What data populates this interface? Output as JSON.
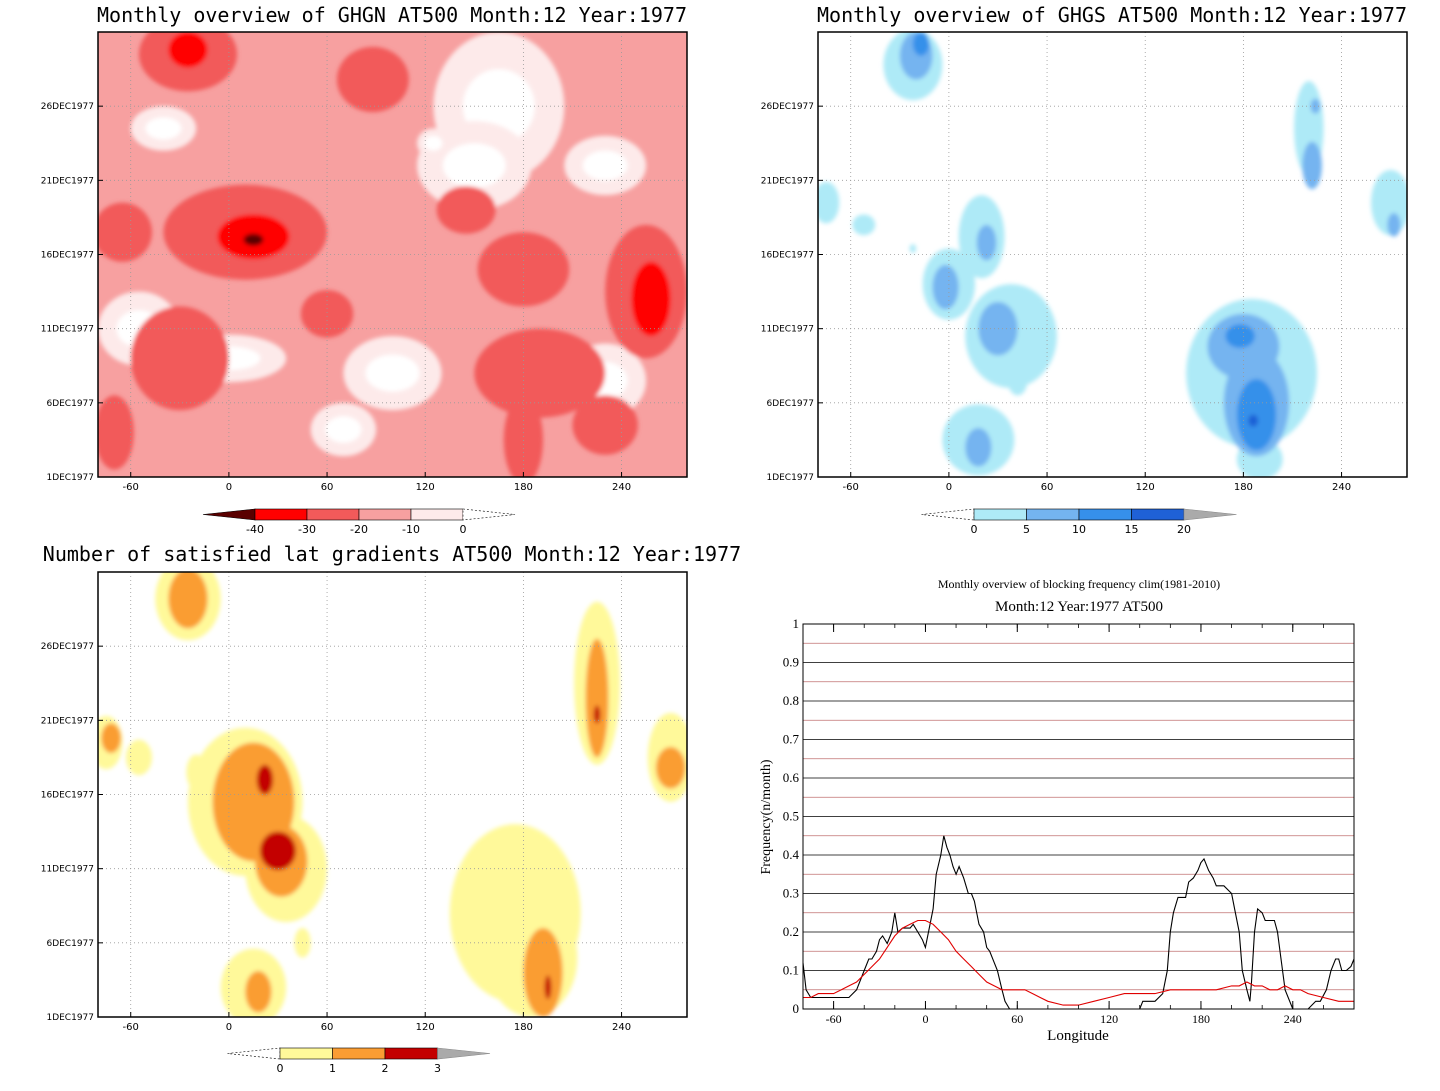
{
  "colors": {
    "ghgn": [
      "#ffffff",
      "#fdeaea",
      "#f7a0a0",
      "#f25a5a",
      "#ff0000",
      "#b80000",
      "#5a0000"
    ],
    "ghgs": [
      "#ffffff",
      "#aeeaf7",
      "#74b4f0",
      "#3690ea",
      "#1f61d6"
    ],
    "gradients": [
      "#ffffff",
      "#fff99a",
      "#fa9d33",
      "#c30000"
    ],
    "freq_black": "#000000",
    "freq_red": "#e00000",
    "freq_grid_red": "#c07070"
  },
  "chart_data": [
    {
      "id": "ghgn",
      "type": "heatmap",
      "title": "Monthly overview of GHGN AT500 Month:12 Year:1977",
      "x_tick_labels": [
        "-60",
        "0",
        "60",
        "120",
        "180",
        "240"
      ],
      "x_ticks": [
        -60,
        0,
        60,
        120,
        180,
        240
      ],
      "xlim": [
        -80,
        280
      ],
      "y_tick_labels": [
        "1DEC1977",
        "6DEC1977",
        "11DEC1977",
        "16DEC1977",
        "21DEC1977",
        "26DEC1977"
      ],
      "y_ticks": [
        1,
        6,
        11,
        16,
        21,
        26
      ],
      "ylim": [
        1,
        31
      ],
      "colorbar": {
        "labels": [
          "-40",
          "-30",
          "-20",
          "-10",
          "0"
        ],
        "levels": [
          -40,
          -30,
          -20,
          -10,
          0
        ]
      },
      "blobs": [
        {
          "x": -25,
          "y": 29.5,
          "rx": 30,
          "ry": 2.5,
          "level": 3
        },
        {
          "x": -25,
          "y": 29.8,
          "rx": 12,
          "ry": 1.2,
          "level": 4
        },
        {
          "x": 88,
          "y": 27.8,
          "rx": 22,
          "ry": 2.2,
          "level": 3
        },
        {
          "x": 10,
          "y": 17.5,
          "rx": 50,
          "ry": 3.2,
          "level": 3
        },
        {
          "x": 15,
          "y": 17.2,
          "rx": 22,
          "ry": 1.5,
          "level": 4
        },
        {
          "x": 15,
          "y": 17,
          "rx": 6,
          "ry": 0.4,
          "level": 6
        },
        {
          "x": -65,
          "y": 17.5,
          "rx": 18,
          "ry": 2,
          "level": 3
        },
        {
          "x": 255,
          "y": 13.5,
          "rx": 25,
          "ry": 4.5,
          "level": 3
        },
        {
          "x": 258,
          "y": 13,
          "rx": 12,
          "ry": 2.5,
          "level": 4
        },
        {
          "x": 180,
          "y": 3.5,
          "rx": 12,
          "ry": 3,
          "level": 3
        },
        {
          "x": 180,
          "y": 15,
          "rx": 28,
          "ry": 2.5,
          "level": 3
        },
        {
          "x": 190,
          "y": 8,
          "rx": 40,
          "ry": 3,
          "level": 3
        },
        {
          "x": 60,
          "y": 12,
          "rx": 16,
          "ry": 1.6,
          "level": 3
        },
        {
          "x": 145,
          "y": 19,
          "rx": 18,
          "ry": 1.6,
          "level": 3
        },
        {
          "x": 230,
          "y": 4.5,
          "rx": 20,
          "ry": 2,
          "level": 3
        },
        {
          "x": -30,
          "y": 9,
          "rx": 30,
          "ry": 3.5,
          "level": 3
        },
        {
          "x": -70,
          "y": 4,
          "rx": 12,
          "ry": 2.5,
          "level": 3
        }
      ],
      "light_blobs": [
        {
          "x": 165,
          "y": 26,
          "rx": 40,
          "ry": 5
        },
        {
          "x": 150,
          "y": 22,
          "rx": 35,
          "ry": 3
        },
        {
          "x": -40,
          "y": 24.5,
          "rx": 20,
          "ry": 1.5
        },
        {
          "x": -55,
          "y": 11,
          "rx": 25,
          "ry": 2.5
        },
        {
          "x": 0,
          "y": 9,
          "rx": 35,
          "ry": 1.6
        },
        {
          "x": 100,
          "y": 8,
          "rx": 30,
          "ry": 2.5
        },
        {
          "x": 230,
          "y": 7.5,
          "rx": 25,
          "ry": 2.5
        },
        {
          "x": 70,
          "y": 4.2,
          "rx": 20,
          "ry": 1.8
        },
        {
          "x": 125,
          "y": 23.5,
          "rx": 10,
          "ry": 1
        },
        {
          "x": 230,
          "y": 22,
          "rx": 25,
          "ry": 2
        }
      ]
    },
    {
      "id": "ghgs",
      "type": "heatmap",
      "title": "Monthly overview of GHGS AT500 Month:12 Year:1977",
      "x_tick_labels": [
        "-60",
        "0",
        "60",
        "120",
        "180",
        "240"
      ],
      "x_ticks": [
        -60,
        0,
        60,
        120,
        180,
        240
      ],
      "xlim": [
        -80,
        280
      ],
      "y_tick_labels": [
        "1DEC1977",
        "6DEC1977",
        "11DEC1977",
        "16DEC1977",
        "21DEC1977",
        "26DEC1977"
      ],
      "y_ticks": [
        1,
        6,
        11,
        16,
        21,
        26
      ],
      "ylim": [
        1,
        31
      ],
      "colorbar": {
        "labels": [
          "0",
          "5",
          "10",
          "15",
          "20"
        ],
        "levels": [
          0,
          5,
          10,
          15,
          20
        ]
      },
      "blobs": [
        {
          "x": -22,
          "y": 28.8,
          "rx": 18,
          "ry": 2.4,
          "level": 1
        },
        {
          "x": -20,
          "y": 29.4,
          "rx": 10,
          "ry": 1.6,
          "level": 2
        },
        {
          "x": -17,
          "y": 30.2,
          "rx": 5,
          "ry": 0.8,
          "level": 3
        },
        {
          "x": 220,
          "y": 24.5,
          "rx": 9,
          "ry": 3.2,
          "level": 1
        },
        {
          "x": 222,
          "y": 22,
          "rx": 6,
          "ry": 1.6,
          "level": 2
        },
        {
          "x": 224,
          "y": 26,
          "rx": 3,
          "ry": 0.5,
          "level": 2
        },
        {
          "x": 270,
          "y": 19.5,
          "rx": 12,
          "ry": 2.2,
          "level": 1
        },
        {
          "x": 272,
          "y": 18,
          "rx": 4,
          "ry": 0.8,
          "level": 2
        },
        {
          "x": -75,
          "y": 19.5,
          "rx": 8,
          "ry": 1.4,
          "level": 1
        },
        {
          "x": -52,
          "y": 18,
          "rx": 7,
          "ry": 0.7,
          "level": 1
        },
        {
          "x": -22,
          "y": 16.4,
          "rx": 2,
          "ry": 0.3,
          "level": 1
        },
        {
          "x": 20,
          "y": 17.2,
          "rx": 14,
          "ry": 2.8,
          "level": 1
        },
        {
          "x": 23,
          "y": 16.8,
          "rx": 6,
          "ry": 1.2,
          "level": 2
        },
        {
          "x": 0,
          "y": 14,
          "rx": 16,
          "ry": 2.4,
          "level": 1
        },
        {
          "x": -2,
          "y": 13.8,
          "rx": 8,
          "ry": 1.5,
          "level": 2
        },
        {
          "x": 38,
          "y": 10.5,
          "rx": 28,
          "ry": 3.5,
          "level": 1
        },
        {
          "x": 30,
          "y": 11,
          "rx": 12,
          "ry": 1.8,
          "level": 2
        },
        {
          "x": 42,
          "y": 7.5,
          "rx": 6,
          "ry": 1,
          "level": 1
        },
        {
          "x": 18,
          "y": 3.5,
          "rx": 22,
          "ry": 2.4,
          "level": 1
        },
        {
          "x": 18,
          "y": 3,
          "rx": 8,
          "ry": 1.3,
          "level": 2
        },
        {
          "x": 185,
          "y": 8,
          "rx": 40,
          "ry": 5,
          "level": 1
        },
        {
          "x": 180,
          "y": 9.8,
          "rx": 22,
          "ry": 2.2,
          "level": 2
        },
        {
          "x": 188,
          "y": 6,
          "rx": 20,
          "ry": 3.6,
          "level": 2
        },
        {
          "x": 188,
          "y": 5.2,
          "rx": 12,
          "ry": 2.4,
          "level": 3
        },
        {
          "x": 178,
          "y": 10.5,
          "rx": 9,
          "ry": 0.8,
          "level": 3
        },
        {
          "x": 190,
          "y": 2.2,
          "rx": 14,
          "ry": 1.4,
          "level": 1
        },
        {
          "x": 186,
          "y": 4.8,
          "rx": 3,
          "ry": 0.4,
          "level": 4
        }
      ]
    },
    {
      "id": "gradients",
      "type": "heatmap",
      "title": "Number of satisfied lat gradients AT500 Month:12 Year:1977",
      "x_tick_labels": [
        "-60",
        "0",
        "60",
        "120",
        "180",
        "240"
      ],
      "x_ticks": [
        -60,
        0,
        60,
        120,
        180,
        240
      ],
      "xlim": [
        -80,
        280
      ],
      "y_tick_labels": [
        "1DEC1977",
        "6DEC1977",
        "11DEC1977",
        "16DEC1977",
        "21DEC1977",
        "26DEC1977"
      ],
      "y_ticks": [
        1,
        6,
        11,
        16,
        21,
        26
      ],
      "ylim": [
        1,
        31
      ],
      "colorbar": {
        "labels": [
          "0",
          "1",
          "2",
          "3"
        ],
        "levels": [
          0,
          1,
          2,
          3
        ]
      },
      "blobs": [
        {
          "x": -25,
          "y": 29.2,
          "rx": 20,
          "ry": 2.8,
          "level": 1
        },
        {
          "x": -25,
          "y": 29.2,
          "rx": 12,
          "ry": 2,
          "level": 2
        },
        {
          "x": 225,
          "y": 23.5,
          "rx": 14,
          "ry": 5.5,
          "level": 1
        },
        {
          "x": 225,
          "y": 22.5,
          "rx": 7,
          "ry": 4,
          "level": 2
        },
        {
          "x": 225,
          "y": 21.4,
          "rx": 2,
          "ry": 0.6,
          "level": 3
        },
        {
          "x": 270,
          "y": 18.5,
          "rx": 14,
          "ry": 3,
          "level": 1
        },
        {
          "x": 270,
          "y": 17.8,
          "rx": 9,
          "ry": 1.4,
          "level": 2
        },
        {
          "x": -75,
          "y": 19.5,
          "rx": 10,
          "ry": 1.8,
          "level": 1
        },
        {
          "x": -72,
          "y": 19.8,
          "rx": 6,
          "ry": 1,
          "level": 2
        },
        {
          "x": -55,
          "y": 18.5,
          "rx": 8,
          "ry": 1.2,
          "level": 1
        },
        {
          "x": -20,
          "y": 17.5,
          "rx": 6,
          "ry": 1.2,
          "level": 1
        },
        {
          "x": 10,
          "y": 15.5,
          "rx": 35,
          "ry": 5,
          "level": 1
        },
        {
          "x": 15,
          "y": 15.5,
          "rx": 25,
          "ry": 4,
          "level": 2
        },
        {
          "x": 22,
          "y": 17,
          "rx": 5,
          "ry": 1,
          "level": 3
        },
        {
          "x": 35,
          "y": 11,
          "rx": 25,
          "ry": 3.6,
          "level": 1
        },
        {
          "x": 32,
          "y": 11.5,
          "rx": 16,
          "ry": 2.4,
          "level": 2
        },
        {
          "x": 30,
          "y": 12.2,
          "rx": 11,
          "ry": 1.3,
          "level": 3
        },
        {
          "x": 45,
          "y": 6,
          "rx": 5,
          "ry": 1,
          "level": 1
        },
        {
          "x": 15,
          "y": 3,
          "rx": 20,
          "ry": 2.6,
          "level": 1
        },
        {
          "x": 18,
          "y": 2.7,
          "rx": 8,
          "ry": 1.4,
          "level": 2
        },
        {
          "x": 175,
          "y": 8,
          "rx": 40,
          "ry": 6,
          "level": 1
        },
        {
          "x": 185,
          "y": 5,
          "rx": 28,
          "ry": 4,
          "level": 1
        },
        {
          "x": 192,
          "y": 4,
          "rx": 12,
          "ry": 3,
          "level": 2
        },
        {
          "x": 195,
          "y": 3,
          "rx": 2,
          "ry": 0.8,
          "level": 3
        }
      ]
    },
    {
      "id": "frequency",
      "type": "line",
      "title": "Monthly overview of blocking frequency clim(1981-2010)",
      "subtitle": "Month:12 Year:1977  AT500",
      "xlabel": "Longitude",
      "ylabel": "Frequency(n/month)",
      "xlim": [
        -80,
        280
      ],
      "ylim": [
        0,
        1
      ],
      "x_ticks": [
        -60,
        0,
        60,
        120,
        180,
        240
      ],
      "x_tick_labels": [
        "-60",
        "0",
        "60",
        "120",
        "180",
        "240"
      ],
      "y_ticks": [
        0,
        0.1,
        0.2,
        0.3,
        0.4,
        0.5,
        0.6,
        0.7,
        0.8,
        0.9,
        1
      ],
      "y_tick_labels": [
        "0",
        "0.1",
        "0.2",
        "0.3",
        "0.4",
        "0.5",
        "0.6",
        "0.7",
        "0.8",
        "0.9",
        "1"
      ],
      "series": [
        {
          "color": "#000000",
          "x": [
            -80,
            -78,
            -75,
            -70,
            -65,
            -60,
            -55,
            -50,
            -45,
            -40,
            -37,
            -35,
            -32,
            -30,
            -28,
            -25,
            -22,
            -20,
            -18,
            -15,
            -12,
            -10,
            -8,
            -5,
            -2,
            0,
            2,
            5,
            7,
            10,
            12,
            14,
            16,
            18,
            20,
            22,
            25,
            28,
            30,
            32,
            35,
            38,
            40,
            42,
            45,
            47,
            50,
            52,
            55,
            60,
            80,
            100,
            120,
            140,
            142,
            145,
            150,
            155,
            158,
            160,
            162,
            165,
            168,
            170,
            172,
            175,
            178,
            180,
            182,
            185,
            188,
            190,
            195,
            200,
            202,
            205,
            207,
            210,
            212,
            213,
            215,
            217,
            220,
            222,
            225,
            228,
            230,
            232,
            235,
            240,
            250,
            255,
            258,
            262,
            265,
            268,
            270,
            272,
            275,
            278,
            280
          ],
          "y": [
            0.12,
            0.05,
            0.03,
            0.03,
            0.03,
            0.03,
            0.03,
            0.03,
            0.05,
            0.1,
            0.13,
            0.13,
            0.15,
            0.18,
            0.19,
            0.17,
            0.2,
            0.25,
            0.2,
            0.21,
            0.21,
            0.21,
            0.22,
            0.2,
            0.18,
            0.16,
            0.2,
            0.26,
            0.35,
            0.4,
            0.45,
            0.42,
            0.4,
            0.37,
            0.35,
            0.37,
            0.34,
            0.3,
            0.3,
            0.28,
            0.22,
            0.2,
            0.16,
            0.15,
            0.12,
            0.1,
            0.05,
            0.02,
            0,
            0,
            0,
            0,
            0,
            0,
            0.02,
            0.02,
            0.02,
            0.04,
            0.1,
            0.2,
            0.25,
            0.29,
            0.29,
            0.29,
            0.33,
            0.34,
            0.36,
            0.38,
            0.39,
            0.36,
            0.34,
            0.32,
            0.32,
            0.3,
            0.26,
            0.2,
            0.1,
            0.05,
            0.02,
            0.07,
            0.2,
            0.26,
            0.25,
            0.23,
            0.23,
            0.23,
            0.2,
            0.14,
            0.05,
            0,
            0,
            0.02,
            0.02,
            0.05,
            0.1,
            0.13,
            0.13,
            0.1,
            0.1,
            0.11,
            0.13
          ]
        },
        {
          "color": "#e00000",
          "x": [
            -80,
            -75,
            -70,
            -65,
            -60,
            -55,
            -50,
            -45,
            -40,
            -35,
            -30,
            -25,
            -20,
            -15,
            -10,
            -5,
            0,
            5,
            10,
            15,
            20,
            25,
            30,
            35,
            40,
            45,
            50,
            55,
            60,
            65,
            70,
            75,
            80,
            90,
            100,
            110,
            120,
            130,
            140,
            150,
            160,
            170,
            180,
            190,
            200,
            205,
            210,
            215,
            220,
            225,
            230,
            235,
            240,
            245,
            250,
            260,
            270,
            280
          ],
          "y": [
            0.03,
            0.03,
            0.04,
            0.04,
            0.04,
            0.05,
            0.06,
            0.07,
            0.09,
            0.11,
            0.13,
            0.16,
            0.19,
            0.21,
            0.22,
            0.23,
            0.23,
            0.22,
            0.2,
            0.18,
            0.15,
            0.13,
            0.11,
            0.09,
            0.07,
            0.06,
            0.05,
            0.05,
            0.05,
            0.05,
            0.04,
            0.03,
            0.02,
            0.01,
            0.01,
            0.02,
            0.03,
            0.04,
            0.04,
            0.04,
            0.05,
            0.05,
            0.05,
            0.05,
            0.06,
            0.06,
            0.07,
            0.06,
            0.06,
            0.05,
            0.05,
            0.06,
            0.05,
            0.05,
            0.04,
            0.03,
            0.02,
            0.02
          ]
        }
      ]
    }
  ]
}
